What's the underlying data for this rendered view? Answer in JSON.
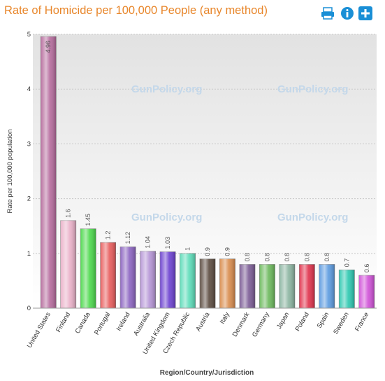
{
  "header": {
    "title": "Rate of Homicide per 100,000 People (any method)"
  },
  "toolbar": {
    "print_icon": "printer-icon",
    "info_icon": "info-icon",
    "add_icon": "plus-icon",
    "icon_color": "#1a8fd6"
  },
  "watermarks": [
    "GunPolicy.org",
    "GunPolicy.org",
    "GunPolicy.org",
    "GunPolicy.org"
  ],
  "chart_data": {
    "type": "bar",
    "title": "Rate of Homicide per 100,000 People (any method)",
    "xlabel": "Region/Country/Jurisdiction",
    "ylabel": "Rate per 100,000 population",
    "ylim": [
      0,
      5
    ],
    "yticks": [
      0,
      1,
      2,
      3,
      4,
      5
    ],
    "grid": true,
    "categories": [
      "United States",
      "Finland",
      "Canada",
      "Portugal",
      "Ireland",
      "Australia",
      "United Kingdom",
      "Czech Republic",
      "Austria",
      "Italy",
      "Denmark",
      "Germany",
      "Japan",
      "Poland",
      "Spain",
      "Sweden",
      "France"
    ],
    "values": [
      4.96,
      1.6,
      1.45,
      1.2,
      1.12,
      1.04,
      1.03,
      1,
      0.9,
      0.9,
      0.8,
      0.8,
      0.8,
      0.8,
      0.8,
      0.7,
      0.6
    ],
    "value_labels": [
      "4.96",
      "1.6",
      "1.45",
      "1.2",
      "1.12",
      "1.04",
      "1.03",
      "1",
      "0.9",
      "0.9",
      "0.8",
      "0.8",
      "0.8",
      "0.8",
      "0.8",
      "0.7",
      "0.6"
    ],
    "colors": [
      "#b56a9c",
      "#eab0c8",
      "#4ad84a",
      "#e85a5a",
      "#8a62c0",
      "#b594d6",
      "#6a3ed0",
      "#5adcb8",
      "#5a4a3e",
      "#d88a4a",
      "#7a5a94",
      "#6ab85a",
      "#8ab4a0",
      "#e0304a",
      "#5a9ae0",
      "#2ac8b0",
      "#d050d8"
    ]
  }
}
